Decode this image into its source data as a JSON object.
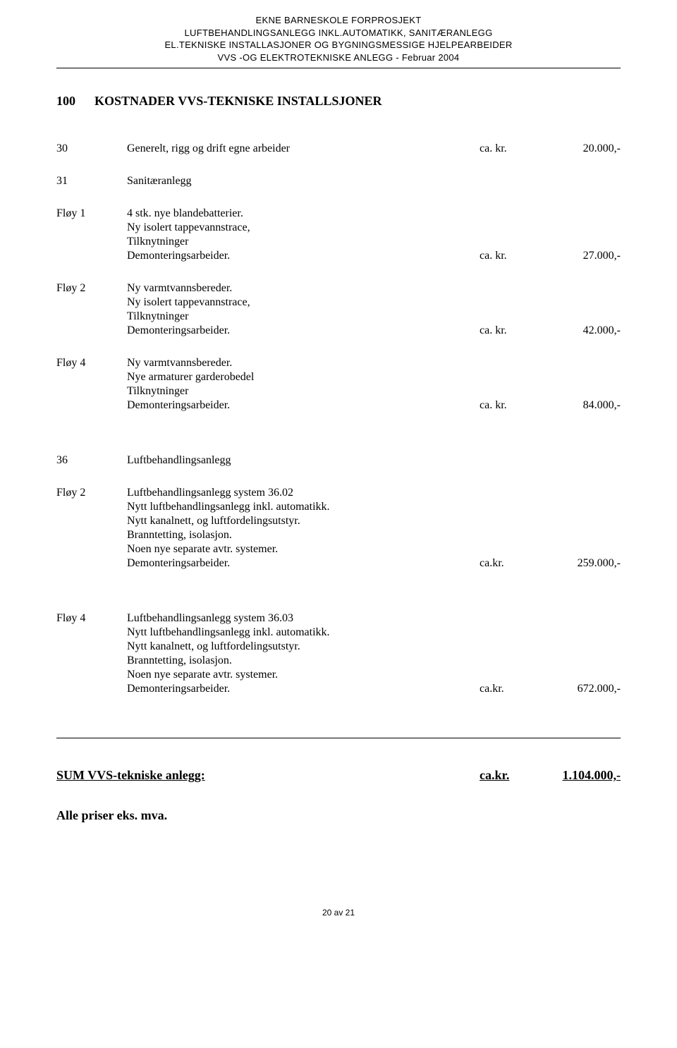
{
  "header": {
    "line1": "EKNE BARNESKOLE FORPROSJEKT",
    "line2": "LUFTBEHANDLINGSANLEGG INKL.AUTOMATIKK, SANITÆRANLEGG",
    "line3": "EL.TEKNISKE INSTALLASJONER OG BYGNINGSMESSIGE HJELPEARBEIDER",
    "line4": "VVS -OG ELEKTROTEKNISKE  ANLEGG  -   Februar 2004"
  },
  "main_section": {
    "code": "100",
    "title": "KOSTNADER VVS-TEKNISKE INSTALLSJONER"
  },
  "items": [
    {
      "code": "30",
      "lines": [
        "Generelt, rigg og drift egne arbeider"
      ],
      "currency": "ca. kr.",
      "amount": "20.000,-"
    },
    {
      "code": "31",
      "lines": [
        "Sanitæranlegg"
      ],
      "currency": "",
      "amount": ""
    },
    {
      "code": "Fløy 1",
      "lines": [
        "4 stk. nye blandebatterier.",
        "Ny isolert tappevannstrace,",
        "Tilknytninger",
        "Demonteringsarbeider."
      ],
      "currency": "ca. kr.",
      "amount": "27.000,-"
    },
    {
      "code": "Fløy 2",
      "lines": [
        "Ny varmtvannsbereder.",
        "Ny isolert tappevannstrace,",
        "Tilknytninger",
        "Demonteringsarbeider."
      ],
      "currency": "ca. kr.",
      "amount": "42.000,-"
    },
    {
      "code": "Fløy 4",
      "lines": [
        "Ny varmtvannsbereder.",
        "Nye armaturer garderobedel",
        "Tilknytninger",
        "Demonteringsarbeider."
      ],
      "currency": "ca. kr.",
      "amount": "84.000,-"
    }
  ],
  "items2": [
    {
      "code": "36",
      "lines": [
        "Luftbehandlingsanlegg"
      ],
      "currency": "",
      "amount": ""
    },
    {
      "code": "Fløy 2",
      "lines": [
        "Luftbehandlingsanlegg system 36.02",
        "Nytt luftbehandlingsanlegg inkl. automatikk.",
        "Nytt kanalnett, og luftfordelingsutstyr.",
        "Branntetting, isolasjon.",
        "Noen nye separate avtr. systemer.",
        "Demonteringsarbeider."
      ],
      "currency": "ca.kr.",
      "amount": "259.000,-"
    }
  ],
  "items3": [
    {
      "code": "Fløy 4",
      "lines": [
        "Luftbehandlingsanlegg system 36.03",
        "Nytt luftbehandlingsanlegg inkl. automatikk.",
        "Nytt kanalnett, og luftfordelingsutstyr.",
        "Branntetting, isolasjon.",
        "Noen nye separate avtr. systemer.",
        "Demonteringsarbeider."
      ],
      "currency": "ca.kr.",
      "amount": "672.000,-"
    }
  ],
  "sum": {
    "label": "SUM VVS-tekniske anlegg:",
    "currency": "ca.kr.",
    "amount": "1.104.000,-"
  },
  "eksmva": "Alle priser eks. mva.",
  "footer": "20 av 21"
}
